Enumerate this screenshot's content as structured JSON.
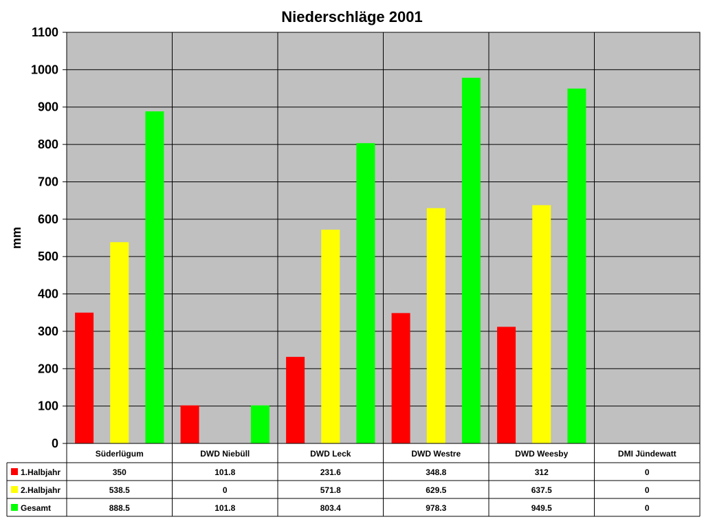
{
  "chart_data": {
    "type": "bar",
    "title": "Niederschläge 2001",
    "ylabel": "mm",
    "xlabel": "",
    "ylim": [
      0,
      1100
    ],
    "yticks": [
      0,
      100,
      200,
      300,
      400,
      500,
      600,
      700,
      800,
      900,
      1000,
      1100
    ],
    "grid": true,
    "legend": "data-table-left",
    "categories": [
      "Süderlügum",
      "DWD Niebüll",
      "DWD Leck",
      "DWD Westre",
      "DWD Weesby",
      "DMI Jündewatt"
    ],
    "series": [
      {
        "name": "1.Halbjahr",
        "color": "#ff0000",
        "values": [
          350,
          101.8,
          231.6,
          348.8,
          312,
          0
        ]
      },
      {
        "name": "2.Halbjahr",
        "color": "#ffff00",
        "values": [
          538.5,
          0,
          571.8,
          629.5,
          637.5,
          0
        ]
      },
      {
        "name": "Gesamt",
        "color": "#00ff00",
        "values": [
          888.5,
          101.8,
          803.4,
          978.3,
          949.5,
          0
        ]
      }
    ],
    "plot_background": "#c0c0c0"
  }
}
